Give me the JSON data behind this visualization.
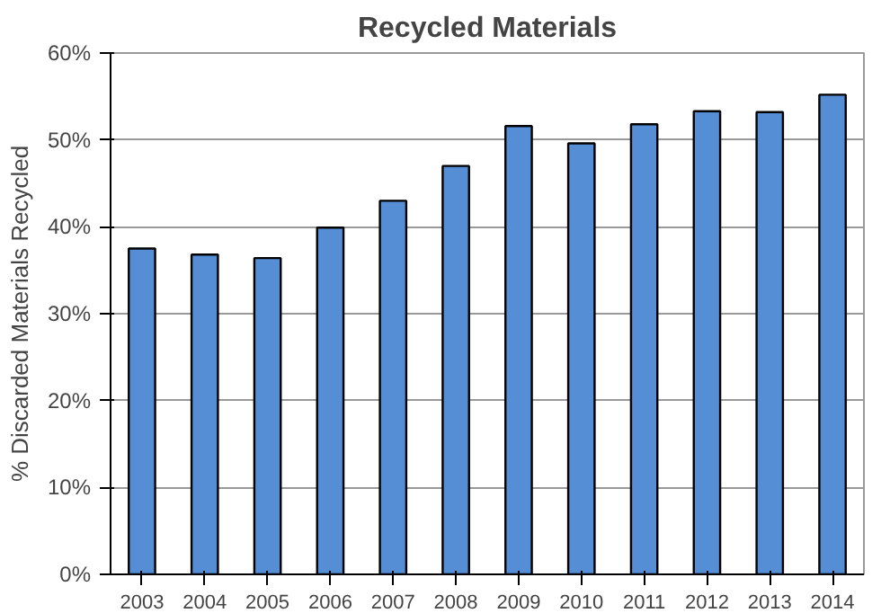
{
  "chart_data": {
    "type": "bar",
    "title": "Recycled Materials",
    "ylabel": "% Discarded Materials Recycled",
    "categories": [
      "2003",
      "2004",
      "2005",
      "2006",
      "2007",
      "2008",
      "2009",
      "2010",
      "2011",
      "2012",
      "2013",
      "2014"
    ],
    "values": [
      37.5,
      36.8,
      36.4,
      39.9,
      43.0,
      47.0,
      51.6,
      49.6,
      51.8,
      53.3,
      53.2,
      55.2
    ],
    "color": "#558ed5",
    "ylim": [
      0,
      60
    ],
    "yticks": [
      {
        "value": 0,
        "label": "0%"
      },
      {
        "value": 10,
        "label": "10%"
      },
      {
        "value": 20,
        "label": "20%"
      },
      {
        "value": 30,
        "label": "30%"
      },
      {
        "value": 40,
        "label": "40%"
      },
      {
        "value": 50,
        "label": "50%"
      },
      {
        "value": 60,
        "label": "60%"
      }
    ],
    "grid": "y"
  }
}
